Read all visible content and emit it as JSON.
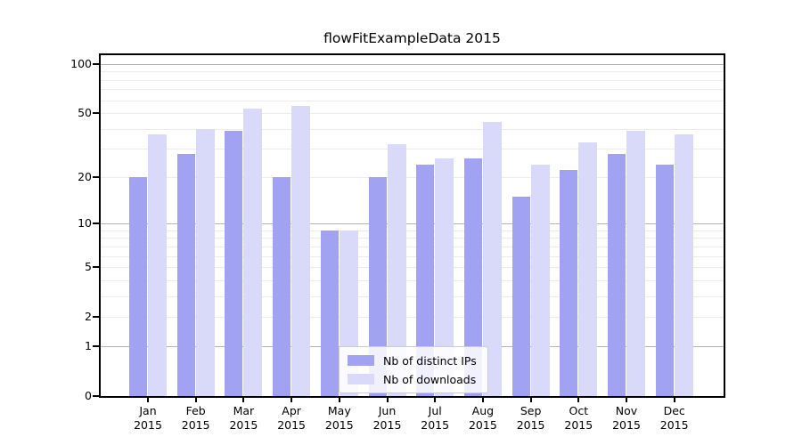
{
  "title": "flowFitExampleData 2015",
  "colors": {
    "ips_bar": "#a2a2f3",
    "downloads_bar": "#d9d9fa",
    "grid_major": "#b3b3b3",
    "grid_minor": "#ececec",
    "spine": "#000000",
    "background": "#ffffff"
  },
  "chart_data": {
    "type": "bar",
    "title": "flowFitExampleData 2015",
    "categories": [
      "Jan",
      "Feb",
      "Mar",
      "Apr",
      "May",
      "Jun",
      "Jul",
      "Aug",
      "Sep",
      "Oct",
      "Nov",
      "Dec"
    ],
    "x_year": "2015",
    "series": [
      {
        "name": "Nb of distinct IPs",
        "color": "#a2a2f3",
        "values": [
          20,
          28,
          39,
          20,
          9,
          20,
          24,
          26,
          15,
          22,
          28,
          24
        ]
      },
      {
        "name": "Nb of downloads",
        "color": "#d9d9fa",
        "values": [
          37,
          40,
          53,
          55,
          9,
          32,
          26,
          44,
          24,
          33,
          39,
          37
        ]
      }
    ],
    "y_scale": "log1p",
    "y_ticks": [
      0,
      1,
      2,
      5,
      10,
      20,
      50,
      100
    ],
    "y_max": 113,
    "grid_major": [
      1,
      10,
      100
    ],
    "grid_minor": [
      2,
      3,
      4,
      5,
      6,
      7,
      8,
      9,
      20,
      30,
      40,
      50,
      60,
      70,
      80,
      90
    ],
    "grid_on": true,
    "legend_position": "lower center"
  }
}
